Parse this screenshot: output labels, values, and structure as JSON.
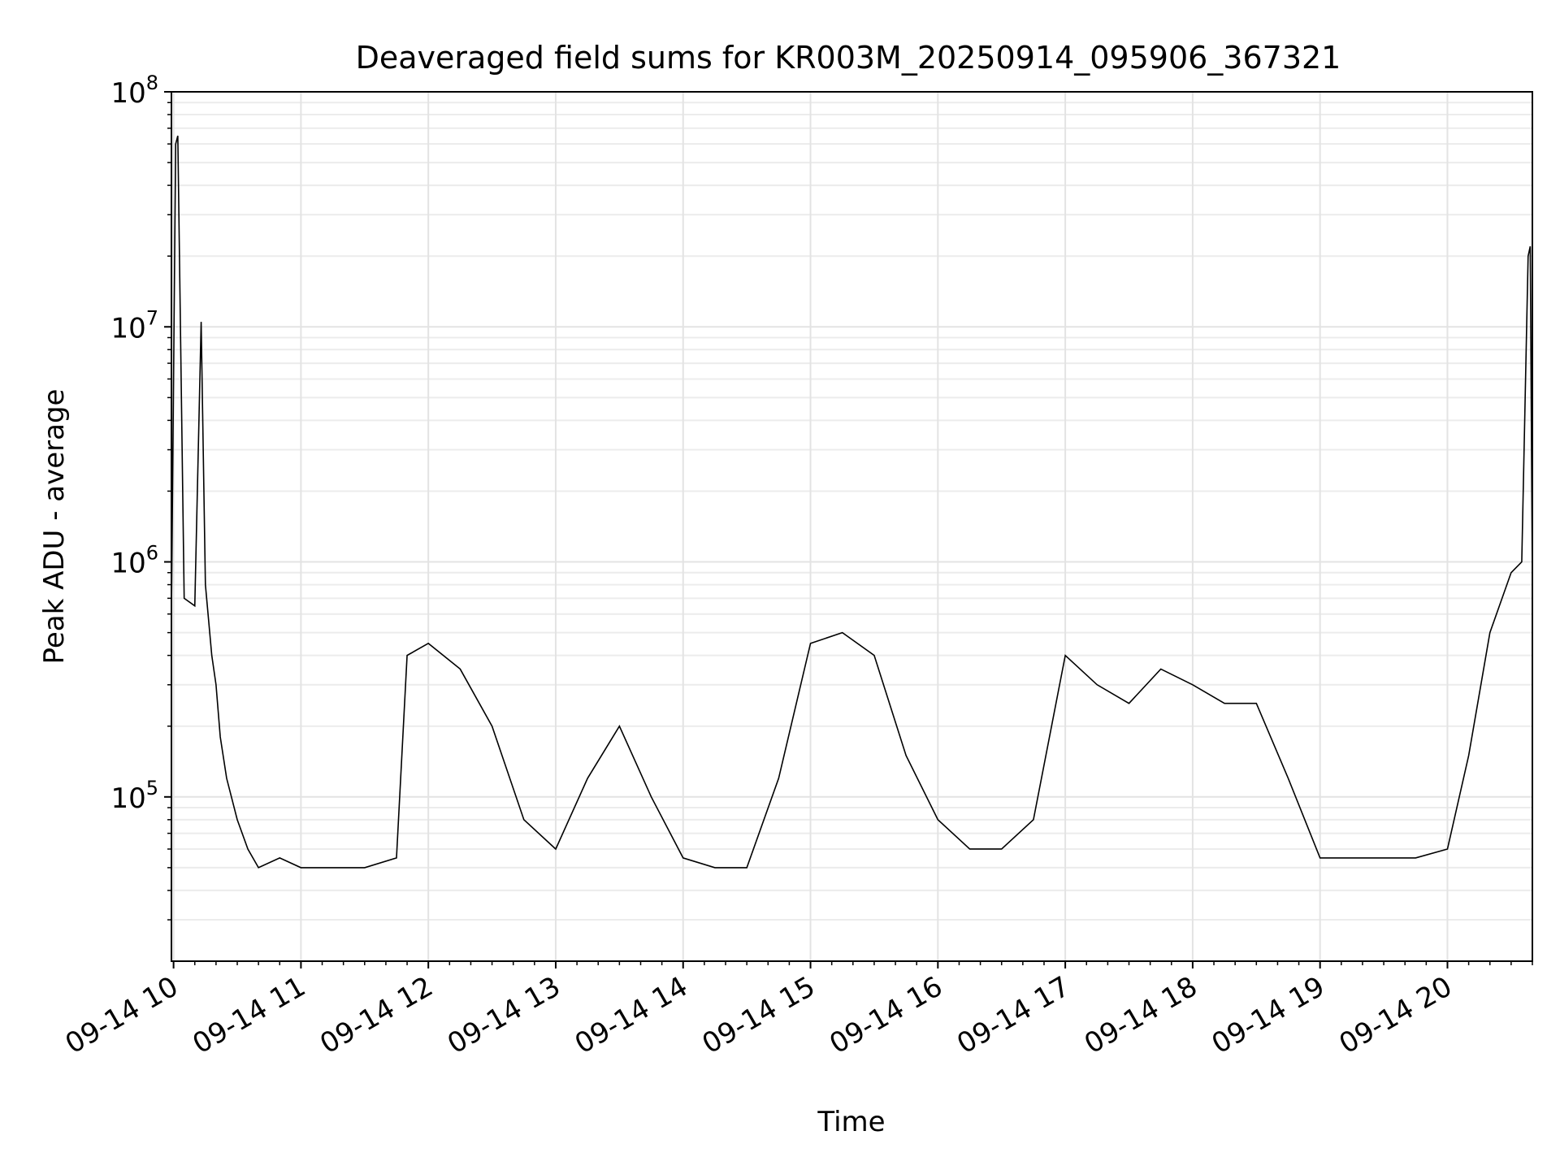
{
  "chart_data": {
    "type": "line",
    "title": "Deaveraged field sums for KR003M_20250914_095906_367321",
    "xlabel": "Time",
    "ylabel": "Peak ADU - average",
    "yscale": "log",
    "ylim": [
      20000,
      100000000
    ],
    "xlim": [
      "2025-09-14 09:59",
      "2025-09-14 20:40"
    ],
    "grid": true,
    "line_color": "#000000",
    "x_ticks": [
      "09-14 10",
      "09-14 11",
      "09-14 12",
      "09-14 13",
      "09-14 14",
      "09-14 15",
      "09-14 16",
      "09-14 17",
      "09-14 18",
      "09-14 19",
      "09-14 20"
    ],
    "y_ticks": [
      {
        "value": 100000,
        "base": "10",
        "exp": "5"
      },
      {
        "value": 1000000,
        "base": "10",
        "exp": "6"
      },
      {
        "value": 10000000,
        "base": "10",
        "exp": "7"
      },
      {
        "value": 100000000,
        "base": "10",
        "exp": "8"
      }
    ],
    "series": [
      {
        "x": [
          "2025-09-14 09:59",
          "2025-09-14 10:01",
          "2025-09-14 10:02",
          "2025-09-14 10:05",
          "2025-09-14 10:10",
          "2025-09-14 10:13",
          "2025-09-14 10:15",
          "2025-09-14 10:18",
          "2025-09-14 10:20",
          "2025-09-14 10:22",
          "2025-09-14 10:25",
          "2025-09-14 10:30",
          "2025-09-14 10:35",
          "2025-09-14 10:40",
          "2025-09-14 10:50",
          "2025-09-14 11:00",
          "2025-09-14 11:15",
          "2025-09-14 11:30",
          "2025-09-14 11:45",
          "2025-09-14 11:50",
          "2025-09-14 12:00",
          "2025-09-14 12:15",
          "2025-09-14 12:30",
          "2025-09-14 12:45",
          "2025-09-14 13:00",
          "2025-09-14 13:15",
          "2025-09-14 13:30",
          "2025-09-14 13:45",
          "2025-09-14 14:00",
          "2025-09-14 14:15",
          "2025-09-14 14:30",
          "2025-09-14 14:45",
          "2025-09-14 15:00",
          "2025-09-14 15:15",
          "2025-09-14 15:30",
          "2025-09-14 15:45",
          "2025-09-14 16:00",
          "2025-09-14 16:15",
          "2025-09-14 16:30",
          "2025-09-14 16:45",
          "2025-09-14 17:00",
          "2025-09-14 17:15",
          "2025-09-14 17:30",
          "2025-09-14 17:45",
          "2025-09-14 18:00",
          "2025-09-14 18:15",
          "2025-09-14 18:30",
          "2025-09-14 18:45",
          "2025-09-14 19:00",
          "2025-09-14 19:15",
          "2025-09-14 19:30",
          "2025-09-14 19:45",
          "2025-09-14 20:00",
          "2025-09-14 20:10",
          "2025-09-14 20:20",
          "2025-09-14 20:30",
          "2025-09-14 20:35",
          "2025-09-14 20:38",
          "2025-09-14 20:39",
          "2025-09-14 20:40"
        ],
        "y": [
          600000,
          60000000,
          65000000,
          700000,
          650000,
          10500000,
          800000,
          400000,
          300000,
          180000,
          120000,
          80000,
          60000,
          50000,
          55000,
          50000,
          50000,
          50000,
          55000,
          400000,
          450000,
          350000,
          200000,
          80000,
          60000,
          120000,
          200000,
          100000,
          55000,
          50000,
          50000,
          120000,
          450000,
          500000,
          400000,
          150000,
          80000,
          60000,
          60000,
          80000,
          400000,
          300000,
          250000,
          350000,
          300000,
          250000,
          250000,
          120000,
          55000,
          55000,
          55000,
          55000,
          60000,
          150000,
          500000,
          900000,
          1000000,
          20000000,
          22000000,
          800000
        ]
      }
    ]
  }
}
